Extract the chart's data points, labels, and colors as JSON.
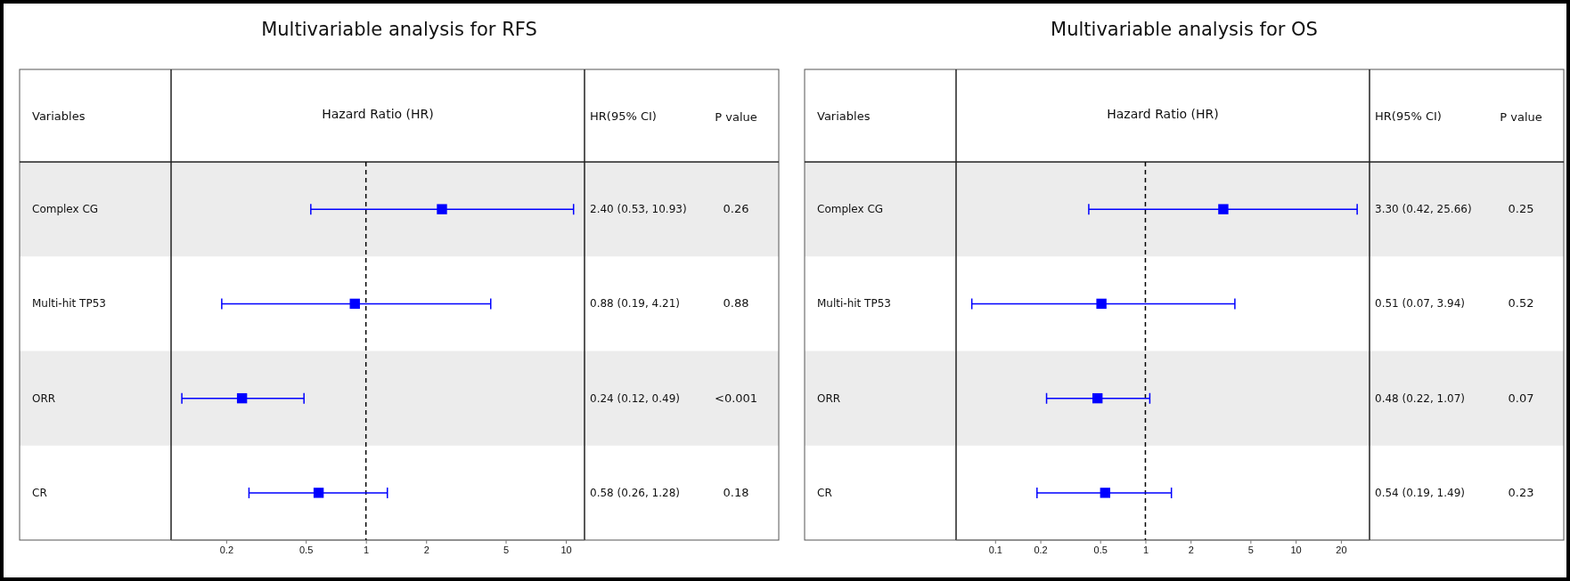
{
  "chart_data": [
    {
      "type": "scatter",
      "title": "Multivariable analysis for RFS",
      "xlabel": "Hazard Ratio (HR)",
      "ylabel": "Variables",
      "orientation": "horizontal",
      "log": "x",
      "marker": "square",
      "categories": [
        "Complex CG",
        "Multi-hit TP53",
        "ORR",
        "CR"
      ],
      "values": [
        2.4,
        0.88,
        0.24,
        0.58
      ],
      "errors": [
        [
          0.53,
          10.93
        ],
        [
          0.19,
          4.21
        ],
        [
          0.12,
          0.49
        ],
        [
          0.26,
          1.28
        ]
      ],
      "color": "#0000ff",
      "xlim": [
        0.106,
        12.4
      ],
      "xticks": [
        0.2,
        0.5,
        1,
        2,
        5,
        10
      ],
      "ref_lines": [
        {
          "axis": "x",
          "value": 1,
          "line_style": "dashed",
          "color": "#000000"
        }
      ],
      "annotations": [
        "HR(95% CI)",
        "P value",
        "2.40 (0.53, 10.93)",
        "0.88 (0.19, 4.21)",
        "0.24 (0.12, 0.49)",
        "0.58 (0.26, 1.28)",
        "0.26",
        "0.88",
        "<0.001",
        "0.18"
      ]
    },
    {
      "type": "scatter",
      "title": "Multivariable analysis for OS",
      "xlabel": "Hazard Ratio (HR)",
      "ylabel": "Variables",
      "orientation": "horizontal",
      "log": "x",
      "marker": "square",
      "categories": [
        "Complex CG",
        "Multi-hit TP53",
        "ORR",
        "CR"
      ],
      "values": [
        3.3,
        0.51,
        0.48,
        0.54
      ],
      "errors": [
        [
          0.42,
          25.66
        ],
        [
          0.07,
          3.94
        ],
        [
          0.22,
          1.07
        ],
        [
          0.19,
          1.49
        ]
      ],
      "color": "#0000ff",
      "xlim": [
        0.055,
        31
      ],
      "xticks": [
        0.1,
        0.2,
        0.5,
        1,
        2,
        5,
        10,
        20
      ],
      "ref_lines": [
        {
          "axis": "x",
          "value": 1,
          "line_style": "dashed",
          "color": "#000000"
        }
      ],
      "annotations": [
        "HR(95% CI)",
        "P value",
        "3.30 (0.42, 25.66)",
        "0.51 (0.07, 3.94)",
        "0.48 (0.22, 1.07)",
        "0.54 (0.19, 1.49)",
        "0.25",
        "0.52",
        "0.07",
        "0.23"
      ]
    }
  ]
}
